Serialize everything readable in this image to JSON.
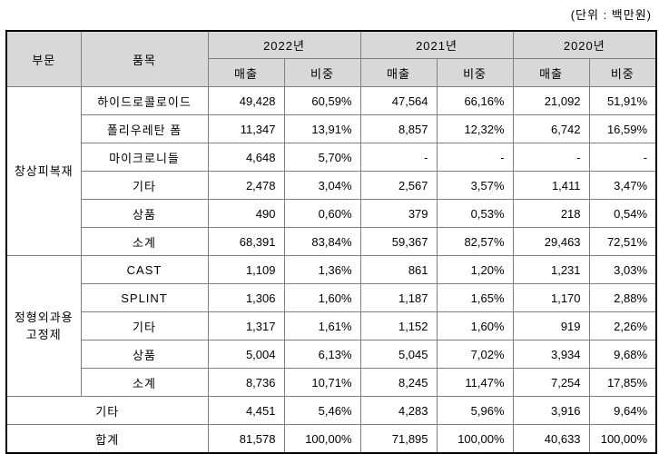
{
  "unit_label": "(단위 : 백만원)",
  "colors": {
    "header_bg": "#d8d8d8",
    "grid_line": "#808080",
    "outer_border": "#000000",
    "text": "#000000"
  },
  "table": {
    "headers": {
      "division": "부문",
      "item": "품목",
      "years": [
        "2022년",
        "2021년",
        "2020년"
      ],
      "sub_revenue": "매출",
      "sub_share": "비중"
    },
    "groups": [
      {
        "division": "창상피복재",
        "rows": [
          {
            "item": "하이드로콜로이드",
            "values": [
              "49,428",
              "60,59%",
              "47,564",
              "66,16%",
              "21,092",
              "51,91%"
            ]
          },
          {
            "item": "폴리우레탄 폼",
            "values": [
              "11,347",
              "13,91%",
              "8,857",
              "12,32%",
              "6,742",
              "16,59%"
            ]
          },
          {
            "item": "마이크로니들",
            "values": [
              "4,648",
              "5,70%",
              "-",
              "-",
              "-",
              "-"
            ]
          },
          {
            "item": "기타",
            "values": [
              "2,478",
              "3,04%",
              "2,567",
              "3,57%",
              "1,411",
              "3,47%"
            ]
          },
          {
            "item": "상품",
            "values": [
              "490",
              "0,60%",
              "379",
              "0,53%",
              "218",
              "0,54%"
            ]
          },
          {
            "item": "소계",
            "values": [
              "68,391",
              "83,84%",
              "59,367",
              "82,57%",
              "29,463",
              "72,51%"
            ]
          }
        ]
      },
      {
        "division": "정형외과용 고정제",
        "rows": [
          {
            "item": "CAST",
            "values": [
              "1,109",
              "1,36%",
              "861",
              "1,20%",
              "1,231",
              "3,03%"
            ]
          },
          {
            "item": "SPLINT",
            "values": [
              "1,306",
              "1,60%",
              "1,187",
              "1,65%",
              "1,170",
              "2,88%"
            ]
          },
          {
            "item": "기타",
            "values": [
              "1,317",
              "1,61%",
              "1,152",
              "1,60%",
              "919",
              "2,26%"
            ]
          },
          {
            "item": "상품",
            "values": [
              "5,004",
              "6,13%",
              "5,045",
              "7,02%",
              "3,934",
              "9,68%"
            ]
          },
          {
            "item": "소계",
            "values": [
              "8,736",
              "10,71%",
              "8,245",
              "11,47%",
              "7,254",
              "17,85%"
            ]
          }
        ]
      }
    ],
    "footer_rows": [
      {
        "label": "기타",
        "values": [
          "4,451",
          "5,46%",
          "4,283",
          "5,96%",
          "3,916",
          "9,64%"
        ]
      },
      {
        "label": "합계",
        "values": [
          "81,578",
          "100,00%",
          "71,895",
          "100,00%",
          "40,633",
          "100,00%"
        ]
      }
    ]
  }
}
